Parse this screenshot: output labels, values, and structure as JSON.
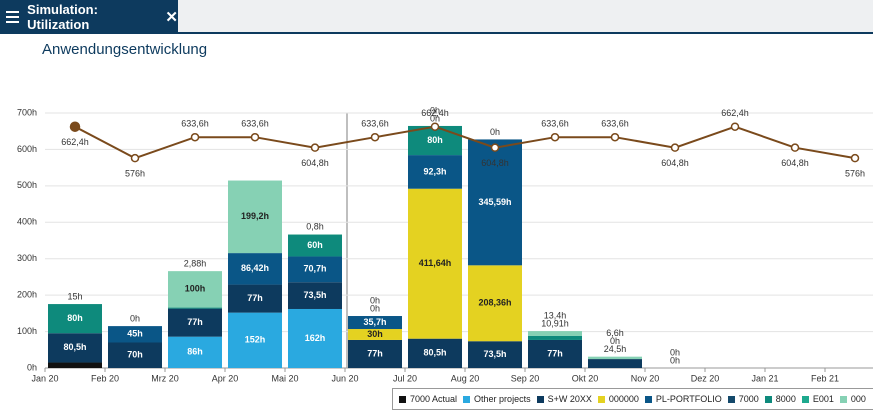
{
  "tab": {
    "title": "Simulation: Utilization"
  },
  "chart_data": {
    "type": "stacked-bar-line",
    "title": "Anwendungsentwicklung",
    "categories": [
      "Jan 20",
      "Feb 20",
      "Mrz 20",
      "Apr 20",
      "Mai 20",
      "Jun 20",
      "Jul 20",
      "Aug 20",
      "Sep 20",
      "Okt 20",
      "Nov 20",
      "Dez 20",
      "Jan 21",
      "Feb 21"
    ],
    "ylim": [
      0,
      700
    ],
    "yticks": [
      {
        "value": 0,
        "label": "0h"
      },
      {
        "value": 100,
        "label": "100h"
      },
      {
        "value": 200,
        "label": "200h"
      },
      {
        "value": 300,
        "label": "300h"
      },
      {
        "value": 400,
        "label": "400h"
      },
      {
        "value": 500,
        "label": "500h"
      },
      {
        "value": 600,
        "label": "600h"
      },
      {
        "value": 700,
        "label": "700h"
      }
    ],
    "grid": true,
    "series": [
      {
        "name": "7000 Actual",
        "color": "#111111",
        "values": [
          15,
          null,
          null,
          null,
          null,
          null,
          null,
          null,
          null,
          null,
          null,
          null,
          null,
          null
        ],
        "value_labels": [
          "15h",
          null,
          null,
          null,
          null,
          null,
          null,
          null,
          null,
          null,
          null,
          null,
          null,
          null
        ]
      },
      {
        "name": "Other projects",
        "color": "#2aa9e0",
        "values": [
          null,
          null,
          86,
          152,
          162,
          null,
          null,
          null,
          null,
          null,
          null,
          null,
          null,
          null
        ],
        "value_labels": [
          null,
          null,
          "86h",
          "152h",
          "162h",
          null,
          null,
          null,
          null,
          null,
          null,
          null,
          null,
          null
        ]
      },
      {
        "name": "S+W 20XX",
        "color": "#0d3a5e",
        "values": [
          80.5,
          70,
          77,
          77,
          73.5,
          77,
          80.5,
          73.5,
          77,
          24.5,
          null,
          null,
          null,
          null
        ],
        "value_labels": [
          "80,5h",
          "70h",
          "77h",
          "77h",
          "73,5h",
          "77h",
          "80,5h",
          "73,5h",
          "77h",
          "24,5h",
          null,
          null,
          null,
          null
        ]
      },
      {
        "name": "000000",
        "color": "#e4d221",
        "values": [
          null,
          null,
          null,
          null,
          null,
          30,
          411.64,
          208.36,
          null,
          null,
          null,
          null,
          null,
          null
        ],
        "value_labels": [
          null,
          null,
          null,
          null,
          null,
          "30h",
          "411,64h",
          "208,36h",
          null,
          null,
          null,
          null,
          null,
          null
        ]
      },
      {
        "name": "PL-PORTFOLIO",
        "color": "#0a5687",
        "values": [
          null,
          45,
          null,
          86.42,
          70.7,
          35.7,
          92.3,
          345.59,
          null,
          null,
          null,
          null,
          null,
          null
        ],
        "value_labels": [
          null,
          "45h",
          null,
          "86,42h",
          "70,7h",
          "35,7h",
          "92,3h",
          "345,59h",
          null,
          null,
          null,
          null,
          null,
          null
        ]
      },
      {
        "name": "7000",
        "color": "#14496b",
        "values": [
          null,
          0,
          null,
          null,
          null,
          0,
          0,
          0,
          null,
          0,
          0,
          null,
          null,
          null
        ],
        "value_labels": [
          null,
          "0h",
          null,
          null,
          null,
          "0h",
          "0h",
          "0h",
          null,
          "0h",
          "0h",
          null,
          null,
          null
        ]
      },
      {
        "name": "8000",
        "color": "#0e8a7c",
        "values": [
          80,
          null,
          2.88,
          null,
          60,
          null,
          80,
          null,
          10.91,
          null,
          null,
          null,
          null,
          null
        ],
        "value_labels": [
          "80h",
          null,
          "2,88h",
          null,
          "60h",
          null,
          "80h",
          null,
          "10,91h",
          null,
          null,
          null,
          null,
          null
        ]
      },
      {
        "name": "E001",
        "color": "#1ea98e",
        "values": [
          null,
          null,
          null,
          null,
          null,
          0,
          0,
          null,
          null,
          null,
          0,
          null,
          null,
          null
        ],
        "value_labels": [
          null,
          null,
          null,
          null,
          null,
          "0h",
          "0h",
          null,
          null,
          null,
          "0h",
          null,
          null,
          null
        ]
      },
      {
        "name": "000",
        "color": "#86d1b4",
        "values": [
          null,
          null,
          100,
          199.2,
          0.8,
          null,
          null,
          null,
          13.4,
          6.6,
          null,
          null,
          null,
          null
        ],
        "value_labels": [
          null,
          null,
          "100h",
          "199,2h",
          "0,8h",
          null,
          null,
          null,
          "13,4h",
          "6,6h",
          null,
          null,
          null,
          null
        ]
      }
    ],
    "line": {
      "color": "#7a4a1c",
      "values": [
        662.4,
        576,
        633.6,
        633.6,
        604.8,
        633.6,
        662.4,
        604.8,
        633.6,
        633.6,
        604.8,
        662.4,
        604.8,
        576
      ],
      "value_labels": [
        "662,4h",
        "576h",
        "633,6h",
        "633,6h",
        "604,8h",
        "633,6h",
        "662,4h",
        "604,8h",
        "633,6h",
        "633,6h",
        "604,8h",
        "662,4h",
        "604,8h",
        "576h"
      ]
    }
  }
}
